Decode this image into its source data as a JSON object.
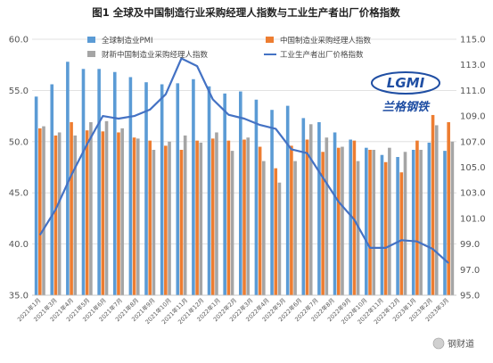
{
  "chart_data": {
    "type": "bar+line",
    "title": "图1 全球及中国制造行业采购经理人指数与工业生产者出厂价格指数",
    "categories": [
      "2021年1月",
      "2021年2月",
      "2021年3月",
      "2021年4月",
      "2021年5月",
      "2021年6月",
      "2021年7月",
      "2021年8月",
      "2021年9月",
      "2021年10月",
      "2021年11月",
      "2021年12月",
      "2022年1月",
      "2022年2月",
      "2022年3月",
      "2022年4月",
      "2022年5月",
      "2022年6月",
      "2022年7月",
      "2022年8月",
      "2022年9月",
      "2022年10月",
      "2022年11月",
      "2022年12月",
      "2023年1月",
      "2023年2月",
      "2023年3月"
    ],
    "x_tick_labels": [
      "2021年1月",
      "2021年3月",
      "2021年4月",
      "2021年5月",
      "2021年6月",
      "2021年7月",
      "2021年8月",
      "2021年9月",
      "2021年10月",
      "2021年11月",
      "2021年12月",
      "2022年1月",
      "2022年2月",
      "2022年3月",
      "2022年4月",
      "2022年5月",
      "2022年6月",
      "2022年7月",
      "2022年8月",
      "2022年9月",
      "2022年10月",
      "2022年11月",
      "2022年12月",
      "2023年1月",
      "2023年2月",
      "2023年3月"
    ],
    "y_left": {
      "min": 35.0,
      "max": 60.0,
      "ticks": [
        "35.0",
        "40.0",
        "45.0",
        "50.0",
        "55.0",
        "60.0"
      ]
    },
    "y_right": {
      "min": 95.0,
      "max": 115.0,
      "ticks": [
        "95.0",
        "97.0",
        "99.0",
        "101.0",
        "103.0",
        "105.0",
        "107.0",
        "109.0",
        "111.0",
        "113.0",
        "115.0"
      ]
    },
    "series": [
      {
        "name": "全球制造业PMI",
        "kind": "bar",
        "axis": "left",
        "color": "#5b9bd5",
        "values": [
          54.4,
          55.6,
          57.8,
          57.1,
          57.1,
          56.8,
          56.3,
          55.8,
          55.6,
          55.7,
          56.1,
          55.4,
          54.7,
          54.9,
          54.1,
          53.1,
          53.5,
          52.3,
          51.9,
          50.9,
          50.2,
          49.4,
          48.7,
          48.5,
          49.2,
          49.9,
          49.1
        ]
      },
      {
        "name": "中国制造业采购经理人指数",
        "kind": "bar",
        "axis": "left",
        "color": "#ed7d31",
        "values": [
          51.3,
          50.6,
          51.9,
          51.1,
          51.0,
          50.9,
          50.4,
          50.1,
          49.6,
          49.2,
          50.1,
          50.3,
          50.1,
          50.2,
          49.5,
          47.4,
          49.6,
          50.2,
          49.0,
          49.4,
          50.1,
          49.2,
          48.0,
          47.0,
          50.1,
          52.6,
          51.9
        ]
      },
      {
        "name": "财新中国制造业采购经理人指数",
        "kind": "bar",
        "axis": "left",
        "color": "#a5a5a5",
        "values": [
          51.5,
          50.9,
          50.6,
          51.9,
          52.0,
          51.3,
          50.3,
          49.2,
          50.0,
          50.6,
          49.9,
          50.9,
          49.1,
          50.4,
          48.1,
          46.0,
          48.1,
          51.7,
          50.4,
          49.5,
          48.1,
          49.2,
          49.4,
          49.0,
          49.2,
          51.6,
          50.0
        ]
      },
      {
        "name": "工业生产者出厂价格指数",
        "kind": "line",
        "axis": "right",
        "color": "#4472c4",
        "values": [
          99.7,
          101.7,
          104.4,
          106.8,
          109.0,
          108.8,
          109.0,
          109.5,
          110.7,
          113.5,
          112.9,
          110.3,
          109.1,
          108.8,
          108.3,
          108.0,
          106.4,
          106.1,
          104.2,
          102.3,
          100.9,
          98.7,
          98.7,
          99.3,
          99.2,
          98.6,
          97.5
        ]
      }
    ],
    "legend": {
      "placement": "top"
    },
    "grid": {
      "y": true
    }
  },
  "logo": {
    "text": "LGMI",
    "subtitle": "兰格钢铁"
  },
  "watermark": {
    "text": "钢财道"
  }
}
